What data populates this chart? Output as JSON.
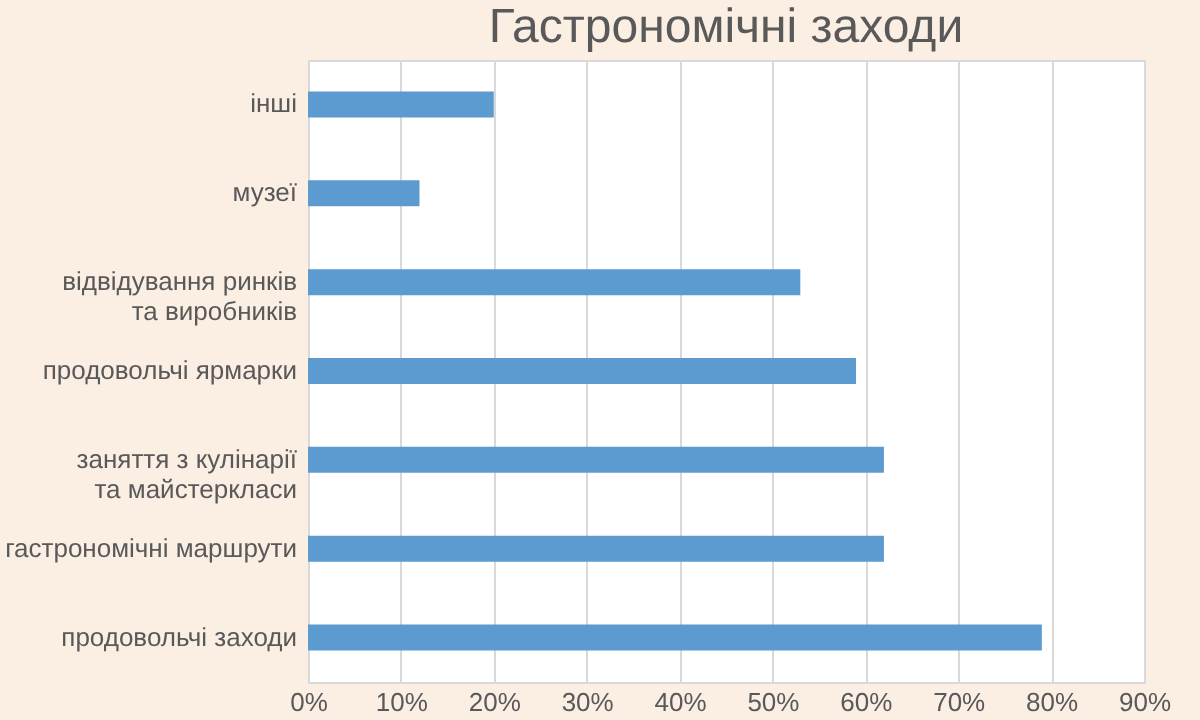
{
  "chart_data": {
    "type": "bar",
    "orientation": "horizontal",
    "title": "Гастрономічні заходи",
    "categories": [
      "інші",
      "музеї",
      "відвідування ринків\nта виробників",
      "продовольчі ярмарки",
      "заняття з кулінарії\nта майстеркласи",
      "гастрономічні маршрути",
      "продовольчі заходи"
    ],
    "values": [
      20,
      12,
      53,
      59,
      62,
      62,
      79
    ],
    "color": "#5b9bd0",
    "xlim": [
      0,
      90
    ],
    "xticks": [
      {
        "value": 0,
        "label": "0%"
      },
      {
        "value": 10,
        "label": "10%"
      },
      {
        "value": 20,
        "label": "20%"
      },
      {
        "value": 30,
        "label": "30%"
      },
      {
        "value": 40,
        "label": "40%"
      },
      {
        "value": 50,
        "label": "50%"
      },
      {
        "value": 60,
        "label": "60%"
      },
      {
        "value": 70,
        "label": "70%"
      },
      {
        "value": 80,
        "label": "80%"
      },
      {
        "value": 90,
        "label": "90%"
      }
    ],
    "grid": "x"
  }
}
